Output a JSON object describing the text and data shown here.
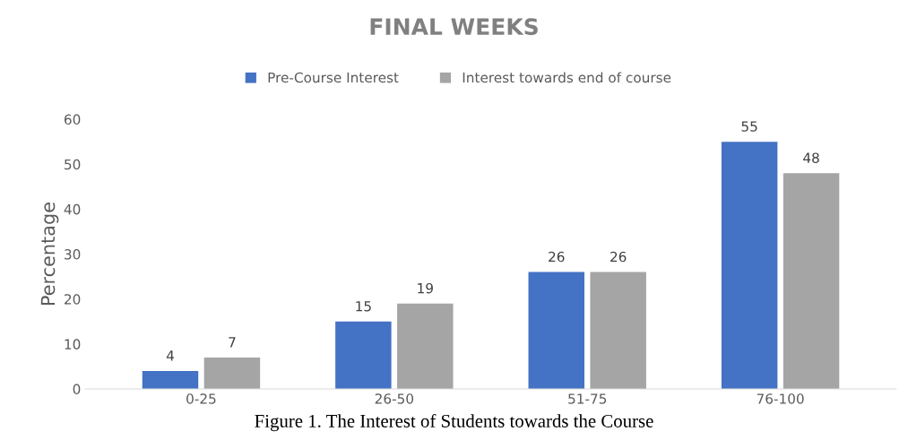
{
  "chart_data": {
    "type": "bar",
    "title": "FINAL WEEKS",
    "ylabel": "Percentage",
    "categories": [
      "0-25",
      "26-50",
      "51-75",
      "76-100"
    ],
    "series": [
      {
        "name": "Pre-Course Interest",
        "color": "#4472c4",
        "values": [
          4,
          15,
          26,
          55
        ]
      },
      {
        "name": "Interest towards end of course",
        "color": "#a5a5a5",
        "values": [
          7,
          19,
          26,
          48
        ]
      }
    ],
    "ylim": [
      0,
      60
    ],
    "yticks": [
      0,
      10,
      20,
      30,
      40,
      50,
      60
    ],
    "grid": false,
    "legend": "top",
    "data_labels": true,
    "annotations": [
      "Figure 1. The Interest of Students towards the Course"
    ]
  }
}
